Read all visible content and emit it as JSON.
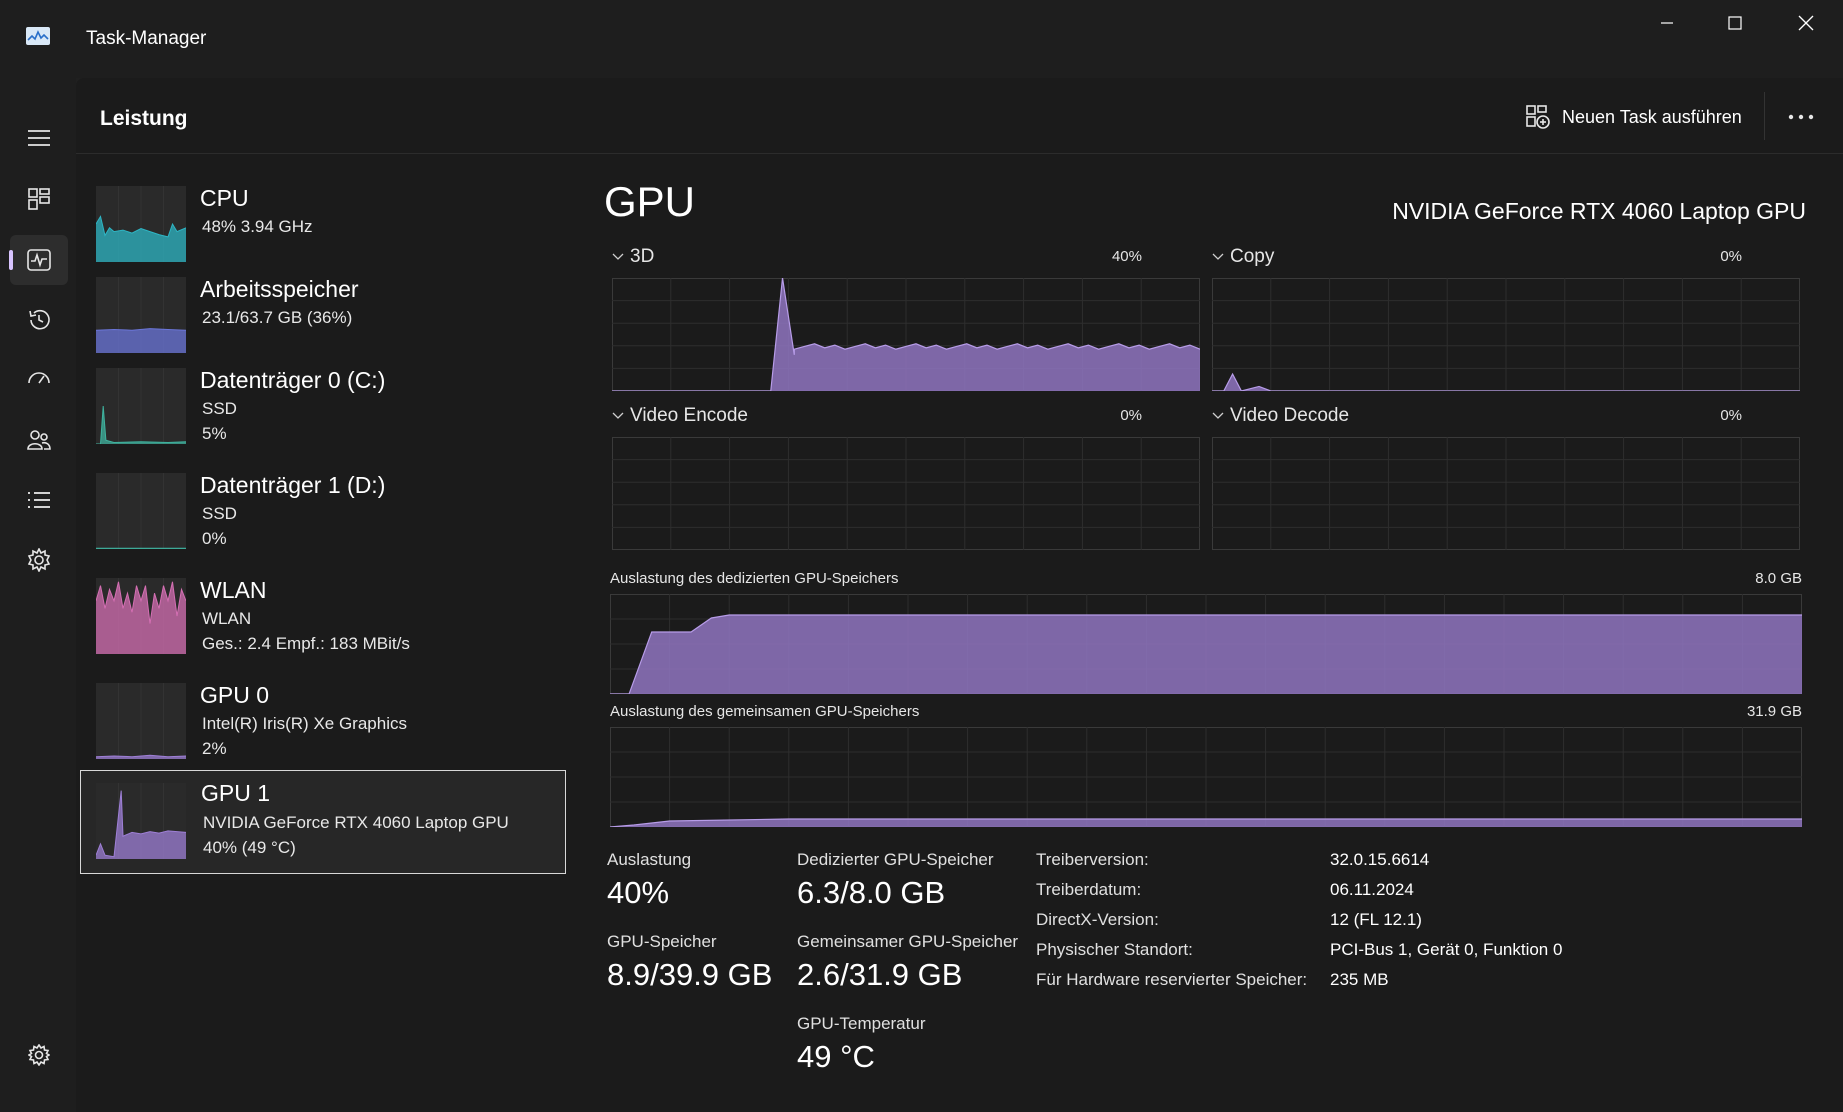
{
  "window": {
    "title": "Task-Manager"
  },
  "header": {
    "title": "Leistung",
    "new_task_label": "Neuen Task ausführen"
  },
  "nav": {
    "items": [
      {
        "icon": "hamburger-menu-icon"
      },
      {
        "icon": "processes-icon"
      },
      {
        "icon": "performance-icon"
      },
      {
        "icon": "app-history-icon"
      },
      {
        "icon": "startup-apps-icon"
      },
      {
        "icon": "users-icon"
      },
      {
        "icon": "details-icon"
      },
      {
        "icon": "services-icon"
      },
      {
        "icon": "settings-gear-icon"
      }
    ],
    "active_index": 2
  },
  "devices": [
    {
      "title": "CPU",
      "sub1": "48%  3.94 GHz",
      "sub2": "",
      "color": "#2eb5c4"
    },
    {
      "title": "Arbeitsspeicher",
      "sub1": "23.1/63.7 GB (36%)",
      "sub2": "",
      "color": "#6b76d9"
    },
    {
      "title": "Datenträger 0 (C:)",
      "sub1": "SSD",
      "sub2": "5%",
      "color": "#3fb39f"
    },
    {
      "title": "Datenträger 1 (D:)",
      "sub1": "SSD",
      "sub2": "0%",
      "color": "#3fb39f"
    },
    {
      "title": "WLAN",
      "sub1": "WLAN",
      "sub2": "Ges.: 2.4  Empf.: 183 MBit/s",
      "color": "#d46fb3"
    },
    {
      "title": "GPU 0",
      "sub1": "Intel(R) Iris(R) Xe Graphics",
      "sub2": "2%",
      "color": "#9e7fd6"
    },
    {
      "title": "GPU 1",
      "sub1": "NVIDIA GeForce RTX 4060 Laptop GPU",
      "sub2": "40%  (49 °C)",
      "color": "#9e7fd6"
    }
  ],
  "detail": {
    "title": "GPU",
    "gpu_name": "NVIDIA GeForce RTX 4060 Laptop GPU",
    "engines": [
      {
        "label": "3D",
        "percent": "40%"
      },
      {
        "label": "Copy",
        "percent": "0%"
      },
      {
        "label": "Video Encode",
        "percent": "0%"
      },
      {
        "label": "Video Decode",
        "percent": "0%"
      }
    ],
    "dedicated_mem": {
      "label": "Auslastung des dedizierten GPU-Speichers",
      "max": "8.0 GB"
    },
    "shared_mem": {
      "label": "Auslastung des gemeinsamen GPU-Speichers",
      "max": "31.9 GB"
    },
    "stats": {
      "utilization_label": "Auslastung",
      "utilization_value": "40%",
      "gpu_mem_label": "GPU-Speicher",
      "gpu_mem_value": "8.9/39.9 GB",
      "dedicated_label": "Dedizierter GPU-Speicher",
      "dedicated_value": "6.3/8.0 GB",
      "shared_label": "Gemeinsamer GPU-Speicher",
      "shared_value": "2.6/31.9 GB",
      "temp_label": "GPU-Temperatur",
      "temp_value": "49 °C"
    },
    "properties": [
      {
        "key": "Treiberversion:",
        "value": "32.0.15.6614"
      },
      {
        "key": "Treiberdatum:",
        "value": "06.11.2024"
      },
      {
        "key": "DirectX-Version:",
        "value": "12 (FL 12.1)"
      },
      {
        "key": "Physischer Standort:",
        "value": "PCI-Bus 1, Gerät 0, Funktion 0"
      },
      {
        "key": "Für Hardware reservierter Speicher:",
        "value": "235 MB"
      }
    ]
  },
  "colors": {
    "gpu_fill": "#8f74c0",
    "gpu_line": "#b79ce8",
    "grid": "#2e2e2e"
  }
}
